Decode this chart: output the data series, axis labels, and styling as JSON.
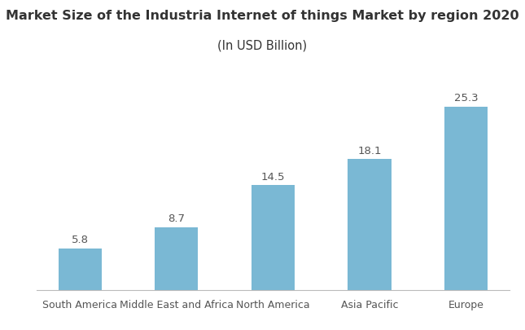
{
  "title_line1": "Market Size of the Industria Internet of things Market by region 2020",
  "title_line2": "(In USD Billion)",
  "categories": [
    "South America",
    "Middle East and Africa",
    "North America",
    "Asia Pacific",
    "Europe"
  ],
  "values": [
    5.8,
    8.7,
    14.5,
    18.1,
    25.3
  ],
  "bar_color": "#7ab8d4",
  "title_fontsize": 11.5,
  "subtitle_fontsize": 10.5,
  "value_fontsize": 9.5,
  "xtick_fontsize": 9,
  "background_color": "#ffffff",
  "ylim": [
    0,
    30
  ],
  "bar_width": 0.45
}
